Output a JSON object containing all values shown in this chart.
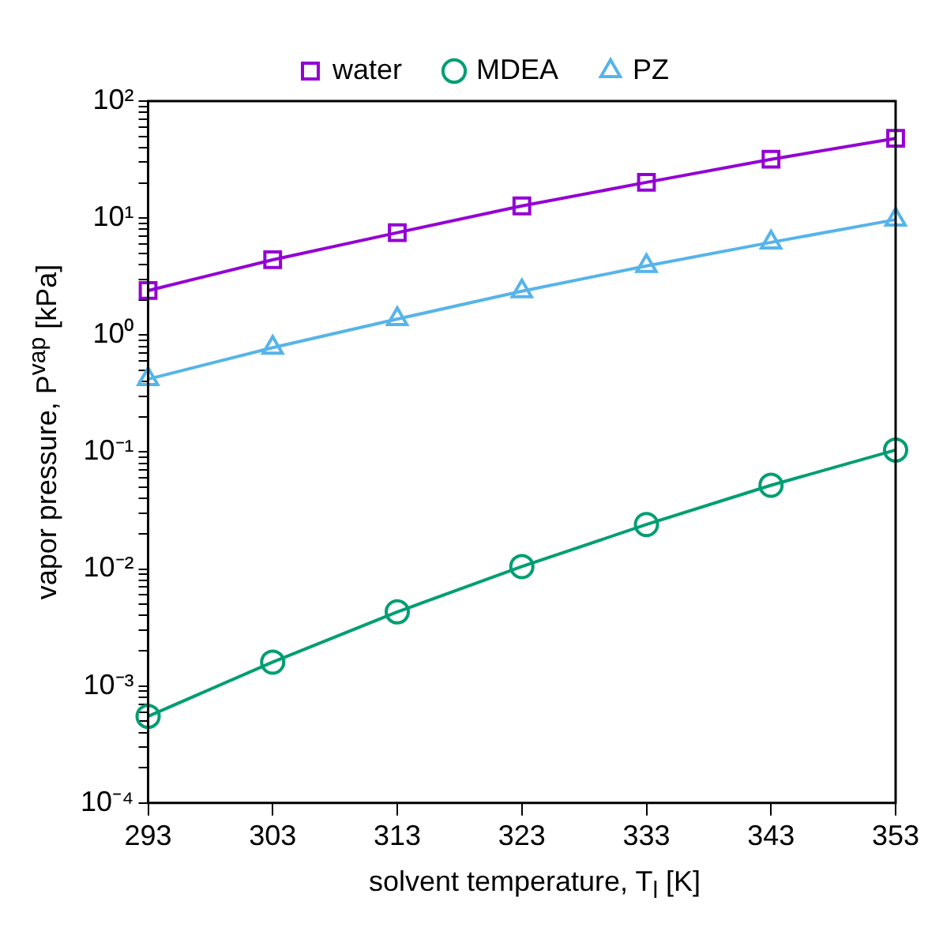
{
  "chart_data": {
    "type": "line",
    "xlabel": "solvent temperature, T$_{l}$ [K]",
    "ylabel": "vapor pressure, P$^{vap}$ [kPa]",
    "x": [
      293,
      303,
      313,
      323,
      333,
      343,
      353
    ],
    "series": [
      {
        "name": "water",
        "color": "#9400d3",
        "marker": "square",
        "values": [
          2.4,
          4.4,
          7.5,
          12.7,
          20.2,
          31.8,
          48
        ]
      },
      {
        "name": "MDEA",
        "color": "#009e73",
        "marker": "circle",
        "values": [
          0.00055,
          0.0016,
          0.0043,
          0.0105,
          0.024,
          0.052,
          0.104
        ]
      },
      {
        "name": "PZ",
        "color": "#56b4e9",
        "marker": "triangle",
        "values": [
          0.42,
          0.78,
          1.37,
          2.37,
          3.9,
          6.2,
          9.7
        ]
      }
    ],
    "xlim": [
      293,
      353
    ],
    "xticks": [
      293,
      303,
      313,
      323,
      333,
      343,
      353
    ],
    "ylim": [
      0.0001,
      100
    ],
    "yticks": [
      {
        "value": 0.0001,
        "label": "10⁻⁴"
      },
      {
        "value": 0.0002,
        "label": null
      },
      {
        "value": 0.0003,
        "label": null
      },
      {
        "value": 0.0004,
        "label": null
      },
      {
        "value": 0.0005,
        "label": null
      },
      {
        "value": 0.0006,
        "label": null
      },
      {
        "value": 0.0007,
        "label": null
      },
      {
        "value": 0.0008,
        "label": null
      },
      {
        "value": 0.0009,
        "label": null
      },
      {
        "value": 0.001,
        "label": "10⁻³"
      },
      {
        "value": 0.002,
        "label": null
      },
      {
        "value": 0.003,
        "label": null
      },
      {
        "value": 0.004,
        "label": null
      },
      {
        "value": 0.005,
        "label": null
      },
      {
        "value": 0.006,
        "label": null
      },
      {
        "value": 0.007,
        "label": null
      },
      {
        "value": 0.008,
        "label": null
      },
      {
        "value": 0.009,
        "label": null
      },
      {
        "value": 0.01,
        "label": "10⁻²"
      },
      {
        "value": 0.02,
        "label": null
      },
      {
        "value": 0.03,
        "label": null
      },
      {
        "value": 0.04,
        "label": null
      },
      {
        "value": 0.05,
        "label": null
      },
      {
        "value": 0.06,
        "label": null
      },
      {
        "value": 0.07,
        "label": null
      },
      {
        "value": 0.08,
        "label": null
      },
      {
        "value": 0.09,
        "label": null
      },
      {
        "value": 0.1,
        "label": "10⁻¹"
      },
      {
        "value": 0.2,
        "label": null
      },
      {
        "value": 0.3,
        "label": null
      },
      {
        "value": 0.4,
        "label": null
      },
      {
        "value": 0.5,
        "label": null
      },
      {
        "value": 0.6,
        "label": null
      },
      {
        "value": 0.7,
        "label": null
      },
      {
        "value": 0.8,
        "label": null
      },
      {
        "value": 0.9,
        "label": null
      },
      {
        "value": 1,
        "label": "10⁰"
      },
      {
        "value": 2,
        "label": null
      },
      {
        "value": 3,
        "label": null
      },
      {
        "value": 4,
        "label": null
      },
      {
        "value": 5,
        "label": null
      },
      {
        "value": 6,
        "label": null
      },
      {
        "value": 7,
        "label": null
      },
      {
        "value": 8,
        "label": null
      },
      {
        "value": 9,
        "label": null
      },
      {
        "value": 10,
        "label": "10¹"
      },
      {
        "value": 20,
        "label": null
      },
      {
        "value": 30,
        "label": null
      },
      {
        "value": 40,
        "label": null
      },
      {
        "value": 50,
        "label": null
      },
      {
        "value": 60,
        "label": null
      },
      {
        "value": 70,
        "label": null
      },
      {
        "value": 80,
        "label": null
      },
      {
        "value": 90,
        "label": null
      },
      {
        "value": 100,
        "label": "10²"
      }
    ],
    "log": "y",
    "grid": false,
    "legend": "top",
    "line_style": "solid"
  }
}
